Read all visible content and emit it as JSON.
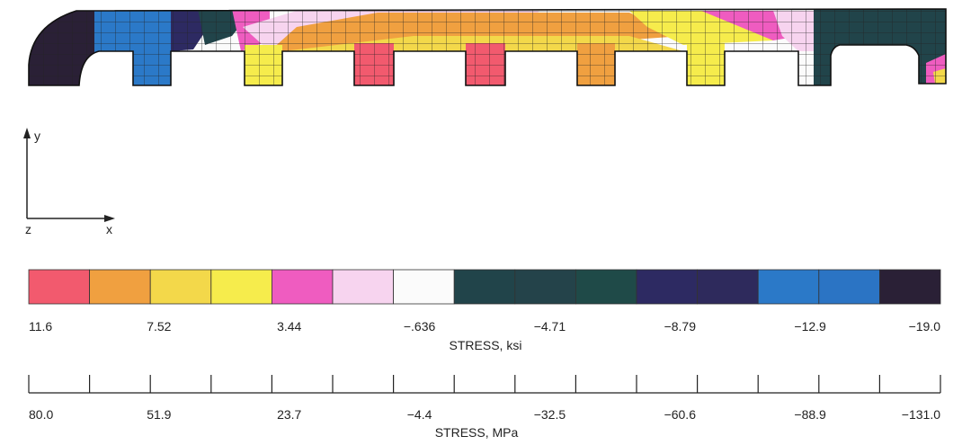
{
  "axes": {
    "y": "y",
    "x": "x",
    "z": "z"
  },
  "ksi_scale": {
    "title": "STRESS, ksi",
    "tick_labels": [
      "11.6",
      "7.52",
      "3.44",
      "-.636",
      "-4.71",
      "-8.79",
      "-12.9",
      "-19.0"
    ],
    "bands": [
      {
        "color": "#f25a6e"
      },
      {
        "color": "#f0a040"
      },
      {
        "color": "#f3d84a"
      },
      {
        "color": "#f6ec4c"
      },
      {
        "color": "#ef5cc0"
      },
      {
        "color": "#f7d4ef"
      },
      {
        "color": "#fbfbfb"
      },
      {
        "color": "#21444a"
      },
      {
        "color": "#24434a"
      },
      {
        "color": "#1f4a48"
      },
      {
        "color": "#2d2a62"
      },
      {
        "color": "#2e2a5c"
      },
      {
        "color": "#2b79c8"
      },
      {
        "color": "#2b74c4"
      },
      {
        "color": "#2a2036"
      }
    ]
  },
  "mpa_scale": {
    "title": "STRESS, MPa",
    "tick_labels": [
      "80.0",
      "51.9",
      "23.7",
      "-4.4",
      "-32.5",
      "-60.6",
      "-88.9",
      "-131.0"
    ]
  }
}
